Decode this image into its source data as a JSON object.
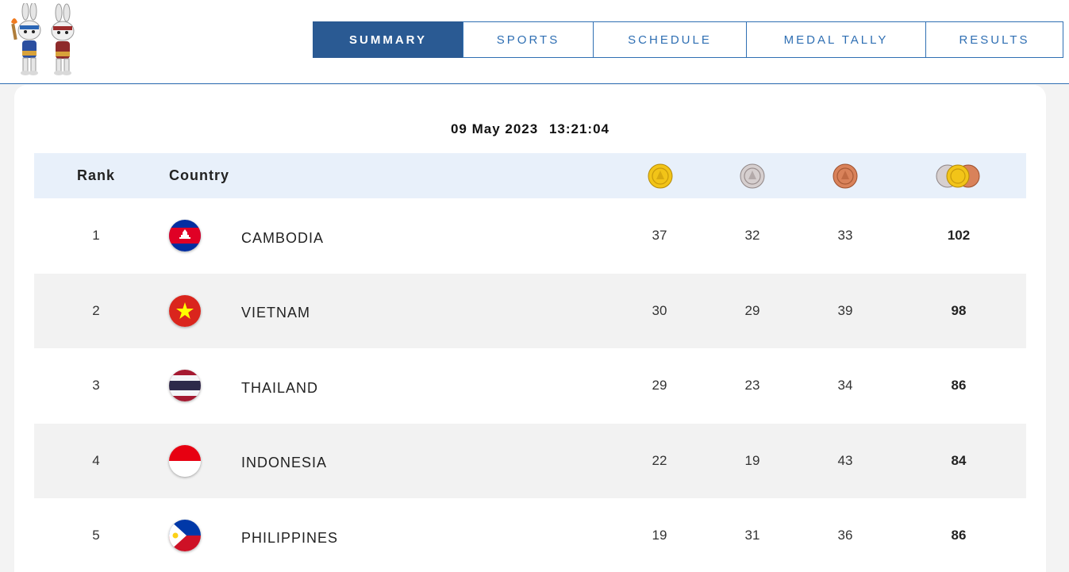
{
  "nav": {
    "items": [
      {
        "label": "SUMMARY",
        "active": true
      },
      {
        "label": "SPORTS",
        "active": false
      },
      {
        "label": "SCHEDULE",
        "active": false
      },
      {
        "label": "MEDAL TALLY",
        "active": false
      },
      {
        "label": "RESULTS",
        "active": false
      }
    ]
  },
  "timestamp": {
    "date": "09 May 2023",
    "time": "13:21:04"
  },
  "table": {
    "headers": {
      "rank": "Rank",
      "country": "Country"
    },
    "medal_icons": [
      "gold-medal-icon",
      "silver-medal-icon",
      "bronze-medal-icon",
      "total-medals-icon"
    ],
    "rows": [
      {
        "rank": "1",
        "country": "CAMBODIA",
        "flag": "cambodia-flag-icon",
        "gold": "37",
        "silver": "32",
        "bronze": "33",
        "total": "102"
      },
      {
        "rank": "2",
        "country": "VIETNAM",
        "flag": "vietnam-flag-icon",
        "gold": "30",
        "silver": "29",
        "bronze": "39",
        "total": "98"
      },
      {
        "rank": "3",
        "country": "THAILAND",
        "flag": "thailand-flag-icon",
        "gold": "29",
        "silver": "23",
        "bronze": "34",
        "total": "86"
      },
      {
        "rank": "4",
        "country": "INDONESIA",
        "flag": "indonesia-flag-icon",
        "gold": "22",
        "silver": "19",
        "bronze": "43",
        "total": "84"
      },
      {
        "rank": "5",
        "country": "PHILIPPINES",
        "flag": "philippines-flag-icon",
        "gold": "19",
        "silver": "31",
        "bronze": "36",
        "total": "86"
      }
    ]
  },
  "colors": {
    "accent": "#2f6fb3",
    "active_tab": "#2a5a93",
    "header_row": "#e8f0fa",
    "alt_row": "#f2f2f2",
    "gold": "#f2c418",
    "silver": "#c9c1c1",
    "bronze": "#d9825a"
  }
}
